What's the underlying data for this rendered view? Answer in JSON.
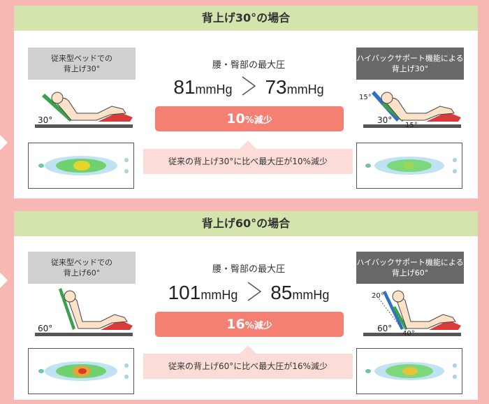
{
  "colors": {
    "background": "#f7b8b4",
    "header": "#d4e4ad",
    "reduce_badge": "#f47f73",
    "note_bg": "#fcdcd8",
    "conventional_label": "#d0d0d0",
    "hibac_label": "#686868"
  },
  "panels": [
    {
      "title": "背上げ30°の場合",
      "conventional_label": "従来型ベッドでの\n背上げ30°",
      "hibac_label": "ハイバックサポート機能による\n背上げ30°",
      "pressure_title": "腰・臀部の最大圧",
      "before_value": "81",
      "before_unit": "mmHg",
      "after_value": "73",
      "after_unit": "mmHg",
      "reduction_value": "10",
      "reduction_unit": "%減少",
      "note": "従来の背上げ30°に比べ最大圧が10%減少",
      "conv_angle": "30°",
      "hibac_angle": "30°",
      "hibac_sub_angle_a": "15°",
      "hibac_sub_angle_b": "15°"
    },
    {
      "title": "背上げ60°の場合",
      "conventional_label": "従来型ベッドでの\n背上げ60°",
      "hibac_label": "ハイバックサポート機能による\n背上げ60°",
      "pressure_title": "腰・臀部の最大圧",
      "before_value": "101",
      "before_unit": "mmHg",
      "after_value": "85",
      "after_unit": "mmHg",
      "reduction_value": "16",
      "reduction_unit": "%減少",
      "note": "従来の背上げ60°に比べ最大圧が16%減少",
      "conv_angle": "60°",
      "hibac_angle": "60°",
      "hibac_sub_angle_a": "20°",
      "hibac_sub_angle_b": "40°"
    }
  ]
}
